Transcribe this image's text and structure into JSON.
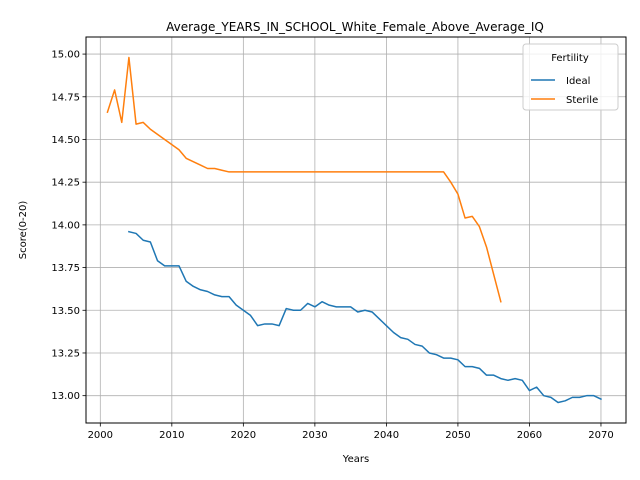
{
  "chart_data": {
    "type": "line",
    "title": "Average_YEARS_IN_SCHOOL_White_Female_Above_Average_IQ",
    "xlabel": "Years",
    "ylabel": "Score(0-20)",
    "xlim": [
      1998,
      2073.5
    ],
    "ylim": [
      12.84,
      15.1
    ],
    "xticks": [
      2000,
      2010,
      2020,
      2030,
      2040,
      2050,
      2060,
      2070
    ],
    "yticks": [
      13.0,
      13.25,
      13.5,
      13.75,
      14.0,
      14.25,
      14.5,
      14.75,
      15.0
    ],
    "ytick_labels": [
      "13.00",
      "13.25",
      "13.50",
      "13.75",
      "14.00",
      "14.25",
      "14.50",
      "14.75",
      "15.00"
    ],
    "grid": true,
    "legend": {
      "title": "Fertility",
      "position": "top-right"
    },
    "series": [
      {
        "name": "Ideal",
        "color": "#1f77b4",
        "x": [
          2004,
          2005,
          2006,
          2007,
          2008,
          2009,
          2010,
          2011,
          2012,
          2013,
          2014,
          2015,
          2016,
          2017,
          2018,
          2019,
          2020,
          2021,
          2022,
          2023,
          2024,
          2025,
          2026,
          2027,
          2028,
          2029,
          2030,
          2031,
          2032,
          2033,
          2034,
          2035,
          2036,
          2037,
          2038,
          2039,
          2040,
          2041,
          2042,
          2043,
          2044,
          2045,
          2046,
          2047,
          2048,
          2049,
          2050,
          2051,
          2052,
          2053,
          2054,
          2055,
          2056,
          2057,
          2058,
          2059,
          2060,
          2061,
          2062,
          2063,
          2064,
          2065,
          2066,
          2067,
          2068,
          2069,
          2070
        ],
        "y": [
          13.96,
          13.95,
          13.91,
          13.9,
          13.79,
          13.76,
          13.76,
          13.76,
          13.67,
          13.64,
          13.62,
          13.61,
          13.59,
          13.58,
          13.58,
          13.53,
          13.5,
          13.47,
          13.41,
          13.42,
          13.42,
          13.41,
          13.51,
          13.5,
          13.5,
          13.54,
          13.52,
          13.55,
          13.53,
          13.52,
          13.52,
          13.52,
          13.49,
          13.5,
          13.49,
          13.45,
          13.41,
          13.37,
          13.34,
          13.33,
          13.3,
          13.29,
          13.25,
          13.24,
          13.22,
          13.22,
          13.21,
          13.17,
          13.17,
          13.16,
          13.12,
          13.12,
          13.1,
          13.09,
          13.1,
          13.09,
          13.03,
          13.05,
          13.0,
          12.99,
          12.96,
          12.97,
          12.99,
          12.99,
          13.0,
          13.0,
          12.98
        ]
      },
      {
        "name": "Sterile",
        "color": "#ff7f0e",
        "x": [
          2001,
          2002,
          2003,
          2004,
          2005,
          2006,
          2007,
          2008,
          2009,
          2010,
          2011,
          2012,
          2013,
          2014,
          2015,
          2016,
          2017,
          2018,
          2019,
          2020,
          2025,
          2030,
          2035,
          2040,
          2045,
          2046,
          2047,
          2048,
          2049,
          2050,
          2051,
          2052,
          2053,
          2054,
          2055,
          2056
        ],
        "y": [
          14.66,
          14.79,
          14.6,
          14.98,
          14.59,
          14.6,
          14.56,
          14.53,
          14.5,
          14.47,
          14.44,
          14.39,
          14.37,
          14.35,
          14.33,
          14.33,
          14.32,
          14.31,
          14.31,
          14.31,
          14.31,
          14.31,
          14.31,
          14.31,
          14.31,
          14.31,
          14.31,
          14.31,
          14.25,
          14.18,
          14.04,
          14.05,
          13.99,
          13.87,
          13.71,
          13.55
        ]
      }
    ]
  }
}
